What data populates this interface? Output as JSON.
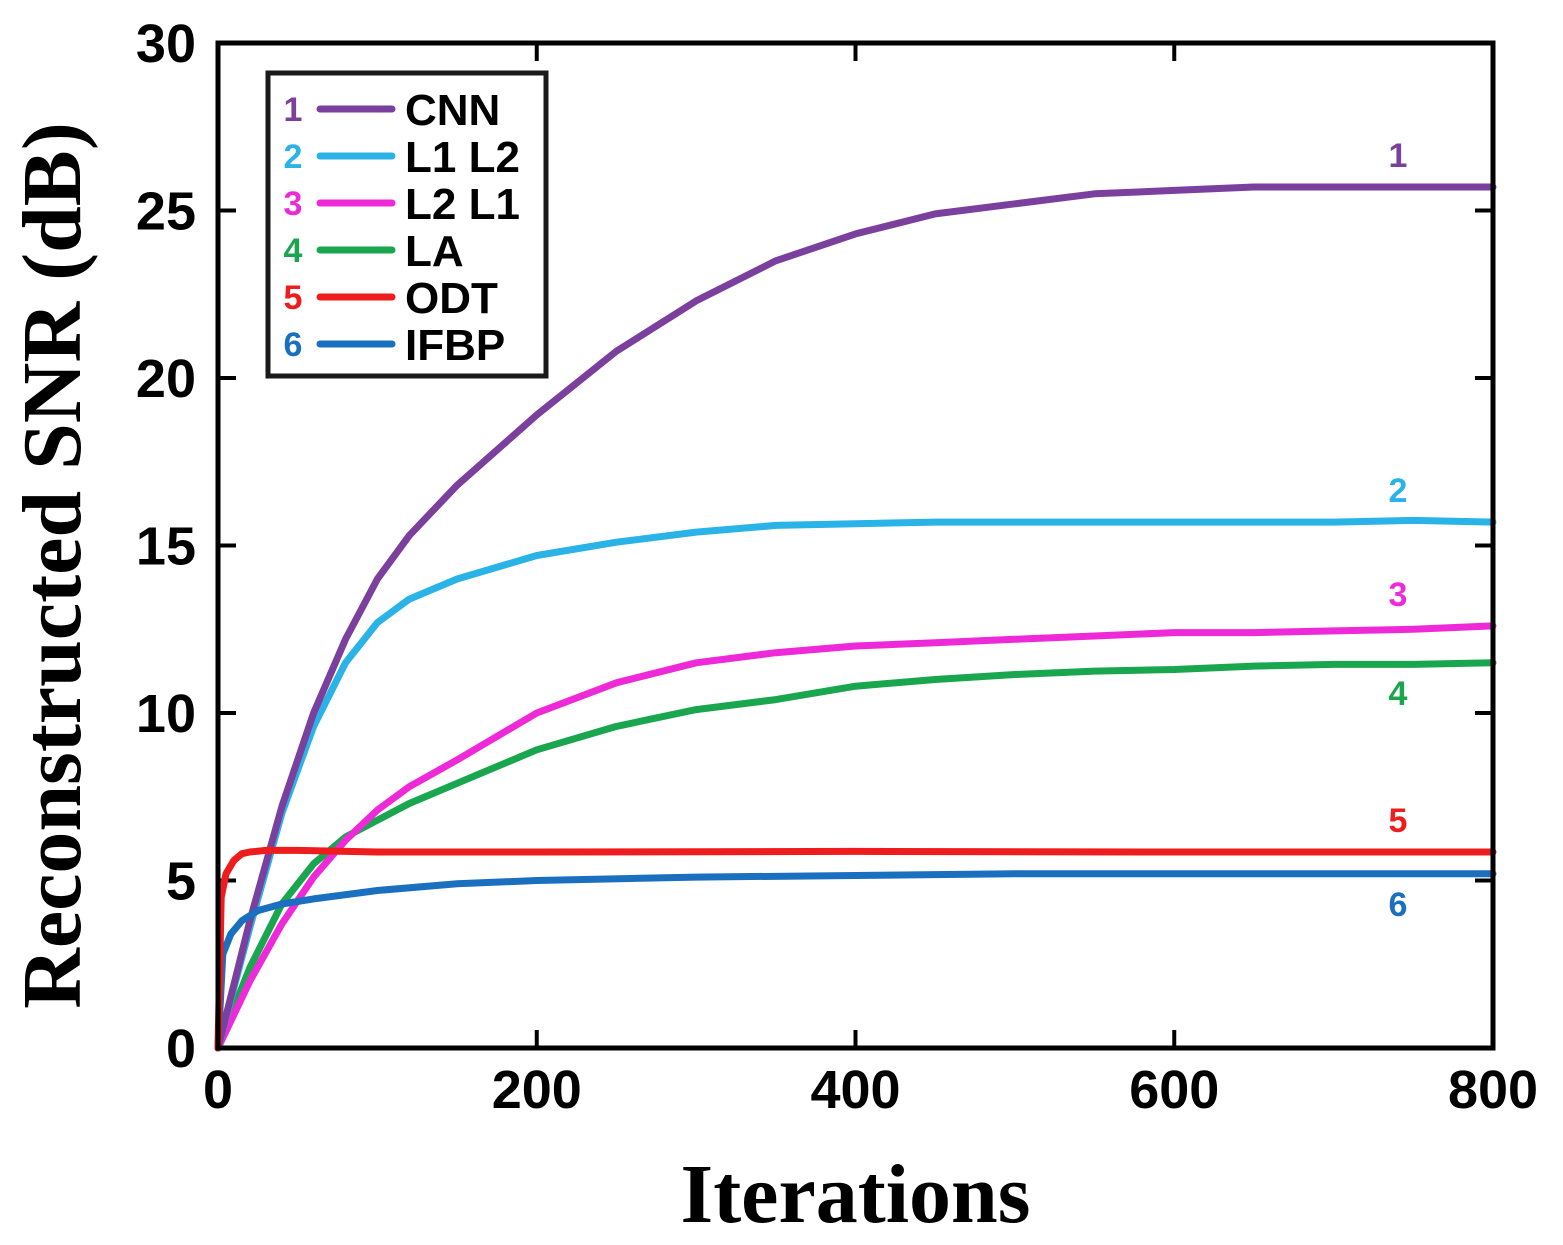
{
  "chart_data": {
    "type": "line",
    "xlabel": "Iterations",
    "ylabel": "Reconstructed SNR (dB)",
    "xlim": [
      0,
      800
    ],
    "ylim": [
      0,
      30
    ],
    "xticks": [
      0,
      200,
      400,
      600,
      800
    ],
    "yticks": [
      0,
      5,
      10,
      15,
      20,
      25,
      30
    ],
    "xtick_labels": [
      "0",
      "200",
      "400",
      "600",
      "800"
    ],
    "ytick_labels": [
      "0",
      "5",
      "10",
      "15",
      "20",
      "25",
      "30"
    ],
    "grid": false,
    "legend_position": "top-left",
    "series": [
      {
        "name": "CNN",
        "number": "1",
        "color": "#7b3f9e",
        "x": [
          0,
          20,
          40,
          60,
          80,
          100,
          120,
          150,
          200,
          250,
          300,
          350,
          400,
          450,
          500,
          550,
          600,
          650,
          700,
          750,
          800
        ],
        "y": [
          0,
          3.8,
          7.2,
          10.0,
          12.2,
          14.0,
          15.3,
          16.8,
          18.9,
          20.8,
          22.3,
          23.5,
          24.3,
          24.9,
          25.2,
          25.5,
          25.6,
          25.7,
          25.7,
          25.7,
          25.7
        ]
      },
      {
        "name": "L1 L2",
        "number": "2",
        "color": "#29b3e6",
        "x": [
          0,
          20,
          40,
          60,
          80,
          100,
          120,
          150,
          200,
          250,
          300,
          350,
          400,
          450,
          500,
          550,
          600,
          650,
          700,
          750,
          800
        ],
        "y": [
          0,
          3.6,
          7.0,
          9.6,
          11.5,
          12.7,
          13.4,
          14.0,
          14.7,
          15.1,
          15.4,
          15.6,
          15.65,
          15.7,
          15.7,
          15.7,
          15.7,
          15.7,
          15.7,
          15.75,
          15.7
        ]
      },
      {
        "name": "L2 L1",
        "number": "3",
        "color": "#ee2ad8",
        "x": [
          0,
          20,
          40,
          60,
          80,
          100,
          120,
          150,
          200,
          250,
          300,
          350,
          400,
          450,
          500,
          550,
          600,
          650,
          700,
          750,
          800
        ],
        "y": [
          0,
          2.0,
          3.7,
          5.1,
          6.2,
          7.1,
          7.8,
          8.6,
          10.0,
          10.9,
          11.5,
          11.8,
          12.0,
          12.1,
          12.2,
          12.3,
          12.4,
          12.4,
          12.45,
          12.5,
          12.6
        ]
      },
      {
        "name": "LA",
        "number": "4",
        "color": "#1aa64f",
        "x": [
          0,
          20,
          40,
          60,
          80,
          100,
          120,
          150,
          200,
          250,
          300,
          350,
          400,
          450,
          500,
          550,
          600,
          650,
          700,
          750,
          800
        ],
        "y": [
          0,
          2.4,
          4.3,
          5.5,
          6.3,
          6.8,
          7.3,
          7.9,
          8.9,
          9.6,
          10.1,
          10.4,
          10.8,
          11.0,
          11.15,
          11.25,
          11.3,
          11.4,
          11.45,
          11.45,
          11.5
        ]
      },
      {
        "name": "ODT",
        "number": "5",
        "color": "#ee1c1c",
        "x": [
          0,
          2,
          5,
          10,
          15,
          20,
          30,
          50,
          100,
          200,
          400,
          600,
          800
        ],
        "y": [
          0,
          4.5,
          5.2,
          5.6,
          5.8,
          5.85,
          5.9,
          5.9,
          5.85,
          5.85,
          5.87,
          5.85,
          5.85
        ]
      },
      {
        "name": "IFBP",
        "number": "6",
        "color": "#1a6fbf",
        "x": [
          0,
          3,
          8,
          15,
          25,
          40,
          60,
          100,
          150,
          200,
          300,
          400,
          500,
          600,
          700,
          800
        ],
        "y": [
          0,
          2.8,
          3.4,
          3.8,
          4.1,
          4.3,
          4.45,
          4.7,
          4.9,
          5.0,
          5.1,
          5.15,
          5.2,
          5.2,
          5.2,
          5.2
        ]
      }
    ]
  }
}
